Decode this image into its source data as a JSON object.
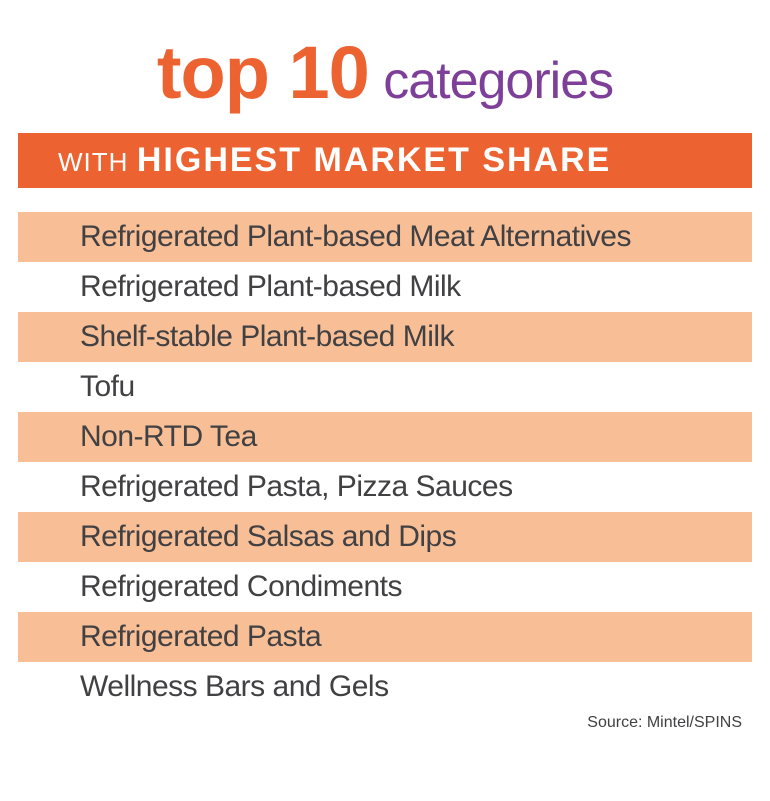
{
  "title": {
    "top10": "top 10",
    "categories": "categories",
    "top10_color": "#ec6230",
    "categories_color": "#7d3f98"
  },
  "subtitle": {
    "with": "WITH",
    "main": "HIGHEST MARKET SHARE",
    "bar_color": "#ec6230",
    "text_color": "#ffffff"
  },
  "list": {
    "text_color": "#414042",
    "stripe_color": "#f8bf97",
    "alt_color": "#ffffff",
    "items": [
      "Refrigerated Plant-based Meat Alternatives",
      "Refrigerated Plant-based Milk",
      "Shelf-stable Plant-based Milk",
      "Tofu",
      "Non-RTD Tea",
      "Refrigerated Pasta, Pizza Sauces",
      "Refrigerated Salsas and Dips",
      "Refrigerated Condiments",
      "Refrigerated Pasta",
      "Wellness Bars and Gels"
    ]
  },
  "source": {
    "label": "Source: Mintel/SPINS",
    "color": "#414042"
  }
}
